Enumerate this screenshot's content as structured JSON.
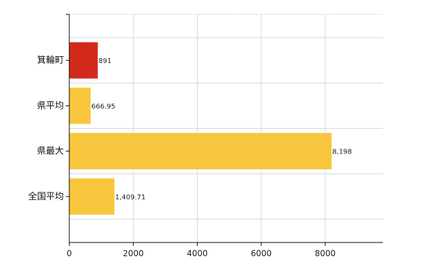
{
  "chart_data": {
    "type": "bar",
    "orientation": "horizontal",
    "categories": [
      "箕輪町",
      "県平均",
      "県最大",
      "全国平均"
    ],
    "values": [
      891,
      666.95,
      8198,
      1409.71
    ],
    "value_labels": [
      "891",
      "666.95",
      "8,198",
      "1,409.71"
    ],
    "bar_colors": [
      "#d12a1d",
      "#f8c63c",
      "#f8c63c",
      "#f8c63c"
    ],
    "xlim": [
      0,
      9800
    ],
    "xticks": [
      0,
      2000,
      4000,
      6000,
      8000
    ],
    "xtick_labels": [
      "0",
      "2000",
      "4000",
      "6000",
      "8000"
    ],
    "grid": true,
    "title": "",
    "xlabel": "",
    "ylabel": ""
  }
}
